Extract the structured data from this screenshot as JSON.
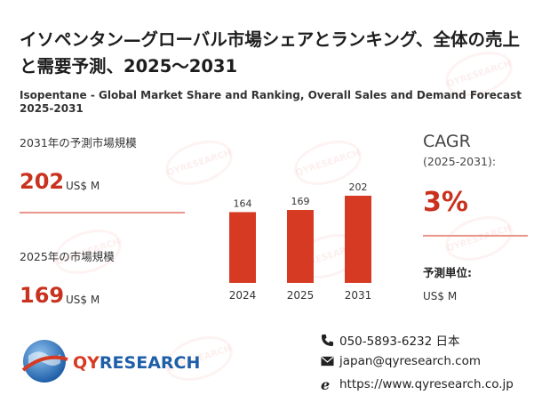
{
  "title": "イソペンタン—グローバル市場シェアとランキング、全体の売上と需要予測、2025～2031",
  "subtitle": "Isopentane - Global Market Share and Ranking, Overall Sales and Demand Forecast 2025-2031",
  "left_panel": {
    "forecast_label": "2031年の予測市場規模",
    "forecast_value": "202",
    "forecast_unit": "US$ M",
    "current_label": "2025年の市場規模",
    "current_value": "169",
    "current_unit": "US$ M"
  },
  "right_panel": {
    "cagr_label": "CAGR",
    "cagr_period": "(2025-2031):",
    "cagr_value": "3%",
    "forecast_unit_label": "予測単位:",
    "forecast_unit_value": "US$ M"
  },
  "chart_data": {
    "type": "bar",
    "categories": [
      "2024",
      "2025",
      "2031"
    ],
    "values": [
      164,
      169,
      202
    ],
    "data_labels": [
      "164",
      "169",
      "202"
    ],
    "bar_color": "#d63a22",
    "title": "",
    "xlabel": "",
    "ylabel": ""
  },
  "contact": {
    "phone": "050-5893-6232 日本",
    "email": "japan@qyresearch.com",
    "website": "https://www.qyresearch.co.jp"
  },
  "logo": {
    "text_qy": "QY",
    "text_rest": "RESEARCH",
    "qy_color": "#d63a22",
    "rest_color": "#1f5fa8"
  },
  "icons": {
    "phone": "phone-icon",
    "email": "mail-icon",
    "website": "web-icon"
  }
}
